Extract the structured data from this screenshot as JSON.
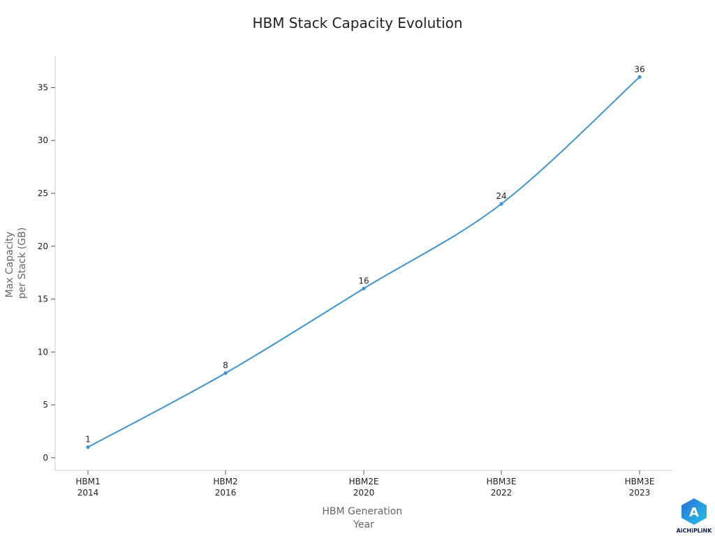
{
  "chart_data": {
    "type": "line",
    "title": "HBM Stack Capacity Evolution",
    "xlabel_lines": [
      "HBM Generation",
      "Year"
    ],
    "ylabel_lines": [
      "Max Capacity",
      "per Stack (GB)"
    ],
    "categories": [
      {
        "generation": "HBM1",
        "year": "2014"
      },
      {
        "generation": "HBM2",
        "year": "2016"
      },
      {
        "generation": "HBM2E",
        "year": "2020"
      },
      {
        "generation": "HBM3E",
        "year": "2022"
      },
      {
        "generation": "HBM3E",
        "year": "2023"
      }
    ],
    "series": [
      {
        "values": [
          1,
          8,
          16,
          24,
          36
        ],
        "color": "#3b94d5",
        "data_labels": [
          "1",
          "8",
          "16",
          "24",
          "36"
        ]
      }
    ],
    "ylim": [
      -1.2,
      38
    ],
    "yticks": [
      0,
      5,
      10,
      15,
      20,
      25,
      30,
      35
    ],
    "grid": false,
    "axis_color": "#cccccc"
  },
  "logo": {
    "text": "AiCHiPLiNK",
    "colors": [
      "#2a6fd6",
      "#21c4e8"
    ]
  }
}
